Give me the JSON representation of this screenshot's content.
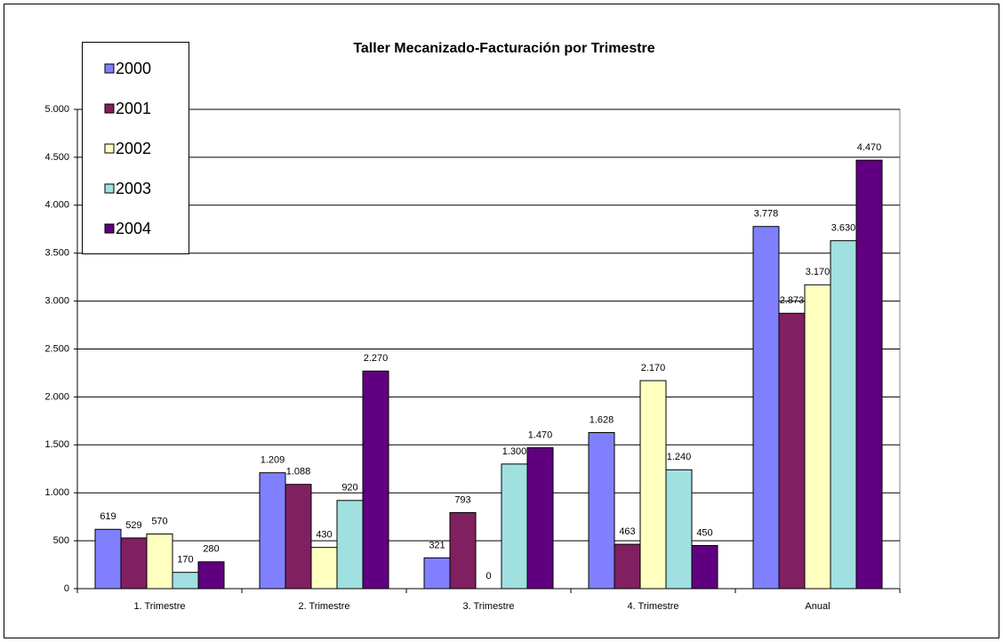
{
  "chart_data": {
    "type": "bar",
    "title": "Taller Mecanizado-Facturación por Trimestre",
    "categories": [
      "1. Trimestre",
      "2. Trimestre",
      "3. Trimestre",
      "4. Trimestre",
      "Anual"
    ],
    "series": [
      {
        "name": "2000",
        "color": "#8080ff",
        "values": [
          619,
          1209,
          321,
          1628,
          3778
        ],
        "value_labels": [
          "619",
          "1.209",
          "321",
          "1.628",
          "3.778"
        ]
      },
      {
        "name": "2001",
        "color": "#802060",
        "values": [
          529,
          1088,
          793,
          463,
          2873
        ],
        "value_labels": [
          "529",
          "1.088",
          "793",
          "463",
          "2.873"
        ]
      },
      {
        "name": "2002",
        "color": "#ffffc0",
        "values": [
          570,
          430,
          0,
          2170,
          3170
        ],
        "value_labels": [
          "570",
          "430",
          "0",
          "2.170",
          "3.170"
        ]
      },
      {
        "name": "2003",
        "color": "#a0e0e0",
        "values": [
          170,
          920,
          1300,
          1240,
          3630
        ],
        "value_labels": [
          "170",
          "920",
          "1.300",
          "1.240",
          "3.630"
        ]
      },
      {
        "name": "2004",
        "color": "#600080",
        "values": [
          280,
          2270,
          1470,
          450,
          4470
        ],
        "value_labels": [
          "280",
          "2.270",
          "1.470",
          "450",
          "4.470"
        ]
      }
    ],
    "ylim": [
      0,
      5000
    ],
    "yticks": [
      0,
      500,
      {
        "value": 1000,
        "label": "1.000"
      },
      {
        "value": 1500,
        "label": "1.500"
      },
      {
        "value": 2000,
        "label": "2.000"
      },
      {
        "value": 2500,
        "label": "2.500"
      },
      {
        "value": 3000,
        "label": "3.000"
      },
      {
        "value": 3500,
        "label": "3.500"
      },
      {
        "value": 4000,
        "label": "4.000"
      },
      {
        "value": 4500,
        "label": "4.500"
      },
      {
        "value": 5000,
        "label": "5.000"
      }
    ],
    "grid": true,
    "legend": "top-left"
  }
}
